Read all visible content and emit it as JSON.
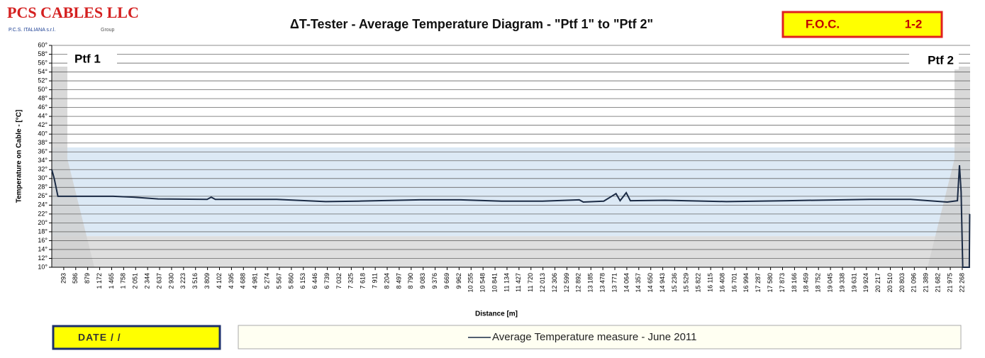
{
  "chart_data": {
    "type": "line",
    "brand": "PCS CABLES LLC",
    "brand_sub": "P.C.S. ITALIANA s.r.l.",
    "brand_group": "Group",
    "title": "ΔT-Tester  - Average Temperature  Diagram  - \"Ptf 1\"  to \"Ptf 2\"",
    "badge_left": "F.O.C.",
    "badge_right": "1-2",
    "start_label": "Ptf 1",
    "end_label": "Ptf 2",
    "ylabel": "Temperature on Cable - [°C]",
    "xlabel": "Distance [m]",
    "date_label": "DATE    /   /",
    "xlim": [
      0,
      22460
    ],
    "ylim": [
      10,
      60
    ],
    "yticks": [
      {
        "value": 10,
        "label": "10°"
      },
      {
        "value": 12,
        "label": "12°"
      },
      {
        "value": 14,
        "label": "14°"
      },
      {
        "value": 16,
        "label": "16°"
      },
      {
        "value": 18,
        "label": "18°"
      },
      {
        "value": 20,
        "label": "20°"
      },
      {
        "value": 22,
        "label": "22°"
      },
      {
        "value": 24,
        "label": "24°"
      },
      {
        "value": 26,
        "label": "26°"
      },
      {
        "value": 28,
        "label": "28°"
      },
      {
        "value": 30,
        "label": "30°"
      },
      {
        "value": 32,
        "label": "32°"
      },
      {
        "value": 34,
        "label": "34°"
      },
      {
        "value": 36,
        "label": "36°"
      },
      {
        "value": 38,
        "label": "38°"
      },
      {
        "value": 40,
        "label": "40°"
      },
      {
        "value": 42,
        "label": "42°"
      },
      {
        "value": 44,
        "label": "44°"
      },
      {
        "value": 46,
        "label": "46°"
      },
      {
        "value": 48,
        "label": "48°"
      },
      {
        "value": 50,
        "label": "50°"
      },
      {
        "value": 52,
        "label": "52°"
      },
      {
        "value": 54,
        "label": "54°"
      },
      {
        "value": 56,
        "label": "56°"
      },
      {
        "value": 58,
        "label": "58°"
      },
      {
        "value": 60,
        "label": "60°"
      }
    ],
    "xticks": [
      293,
      586,
      879,
      {
        "value": 1172,
        "label": "1 172"
      },
      {
        "value": 1465,
        "label": "1 465"
      },
      {
        "value": 1758,
        "label": "1 758"
      },
      {
        "value": 2051,
        "label": "2 051"
      },
      {
        "value": 2344,
        "label": "2 344"
      },
      {
        "value": 2637,
        "label": "2 637"
      },
      {
        "value": 2930,
        "label": "2 930"
      },
      {
        "value": 3223,
        "label": "3 223"
      },
      {
        "value": 3516,
        "label": "3 516"
      },
      {
        "value": 3809,
        "label": "3 809"
      },
      {
        "value": 4102,
        "label": "4 102"
      },
      {
        "value": 4395,
        "label": "4 395"
      },
      {
        "value": 4688,
        "label": "4 688"
      },
      {
        "value": 4981,
        "label": "4 981"
      },
      {
        "value": 5274,
        "label": "5 274"
      },
      {
        "value": 5567,
        "label": "5 567"
      },
      {
        "value": 5860,
        "label": "5 860"
      },
      {
        "value": 6153,
        "label": "6 153"
      },
      {
        "value": 6446,
        "label": "6 446"
      },
      {
        "value": 6739,
        "label": "6 739"
      },
      {
        "value": 7032,
        "label": "7 032"
      },
      {
        "value": 7325,
        "label": "7 325"
      },
      {
        "value": 7618,
        "label": "7 618"
      },
      {
        "value": 7911,
        "label": "7 911"
      },
      {
        "value": 8204,
        "label": "8 204"
      },
      {
        "value": 8497,
        "label": "8 497"
      },
      {
        "value": 8790,
        "label": "8 790"
      },
      {
        "value": 9083,
        "label": "9 083"
      },
      {
        "value": 9376,
        "label": "9 376"
      },
      {
        "value": 9669,
        "label": "9 669"
      },
      {
        "value": 9962,
        "label": "9 962"
      },
      {
        "value": 10255,
        "label": "10 255"
      },
      {
        "value": 10548,
        "label": "10 548"
      },
      {
        "value": 10841,
        "label": "10 841"
      },
      {
        "value": 11134,
        "label": "11 134"
      },
      {
        "value": 11427,
        "label": "11 427"
      },
      {
        "value": 11720,
        "label": "11 720"
      },
      {
        "value": 12013,
        "label": "12 013"
      },
      {
        "value": 12306,
        "label": "12 306"
      },
      {
        "value": 12599,
        "label": "12 599"
      },
      {
        "value": 12892,
        "label": "12 892"
      },
      {
        "value": 13185,
        "label": "13 185"
      },
      {
        "value": 13478,
        "label": "13 478"
      },
      {
        "value": 13771,
        "label": "13 771"
      },
      {
        "value": 14064,
        "label": "14 064"
      },
      {
        "value": 14357,
        "label": "14 357"
      },
      {
        "value": 14650,
        "label": "14 650"
      },
      {
        "value": 14943,
        "label": "14 943"
      },
      {
        "value": 15236,
        "label": "15 236"
      },
      {
        "value": 15529,
        "label": "15 529"
      },
      {
        "value": 15822,
        "label": "15 822"
      },
      {
        "value": 16115,
        "label": "16 115"
      },
      {
        "value": 16408,
        "label": "16 408"
      },
      {
        "value": 16701,
        "label": "16 701"
      },
      {
        "value": 16994,
        "label": "16 994"
      },
      {
        "value": 17287,
        "label": "17 287"
      },
      {
        "value": 17580,
        "label": "17 580"
      },
      {
        "value": 17873,
        "label": "17 873"
      },
      {
        "value": 18166,
        "label": "18 166"
      },
      {
        "value": 18459,
        "label": "18 459"
      },
      {
        "value": 18752,
        "label": "18 752"
      },
      {
        "value": 19045,
        "label": "19 045"
      },
      {
        "value": 19338,
        "label": "19 338"
      },
      {
        "value": 19631,
        "label": "19 631"
      },
      {
        "value": 19924,
        "label": "19 924"
      },
      {
        "value": 20217,
        "label": "20 217"
      },
      {
        "value": 20510,
        "label": "20 510"
      },
      {
        "value": 20803,
        "label": "20 803"
      },
      {
        "value": 21096,
        "label": "21 096"
      },
      {
        "value": 21389,
        "label": "21 389"
      },
      {
        "value": 21682,
        "label": "21 682"
      },
      {
        "value": 21975,
        "label": "21 975"
      },
      {
        "value": 22268,
        "label": "22 268"
      }
    ],
    "grid": true,
    "bands": [
      {
        "from": 17,
        "to": 37,
        "color": "#dce9f5"
      },
      {
        "from": 10,
        "to": 17,
        "color": "#dedede"
      }
    ],
    "x": [
      0,
      60,
      150,
      600,
      1500,
      2000,
      2600,
      3800,
      3900,
      4000,
      5500,
      6700,
      7500,
      9000,
      10000,
      11000,
      12000,
      12900,
      13000,
      13500,
      13800,
      13900,
      14050,
      14150,
      15000,
      16500,
      18000,
      20000,
      21000,
      21900,
      22150,
      22200,
      22240,
      22280,
      22440,
      22450
    ],
    "series": [
      {
        "name": "Average Temperature measure - June 2011",
        "color": "#1a2a44",
        "values": [
          32,
          30,
          26,
          26,
          26,
          25.8,
          25.4,
          25.3,
          25.8,
          25.3,
          25.3,
          24.8,
          24.9,
          25.2,
          25.2,
          24.9,
          24.9,
          25.2,
          24.7,
          24.9,
          26.6,
          25,
          26.8,
          25,
          25.1,
          24.8,
          25,
          25.3,
          25.3,
          24.7,
          25,
          33,
          27,
          10,
          10,
          22
        ]
      }
    ]
  }
}
